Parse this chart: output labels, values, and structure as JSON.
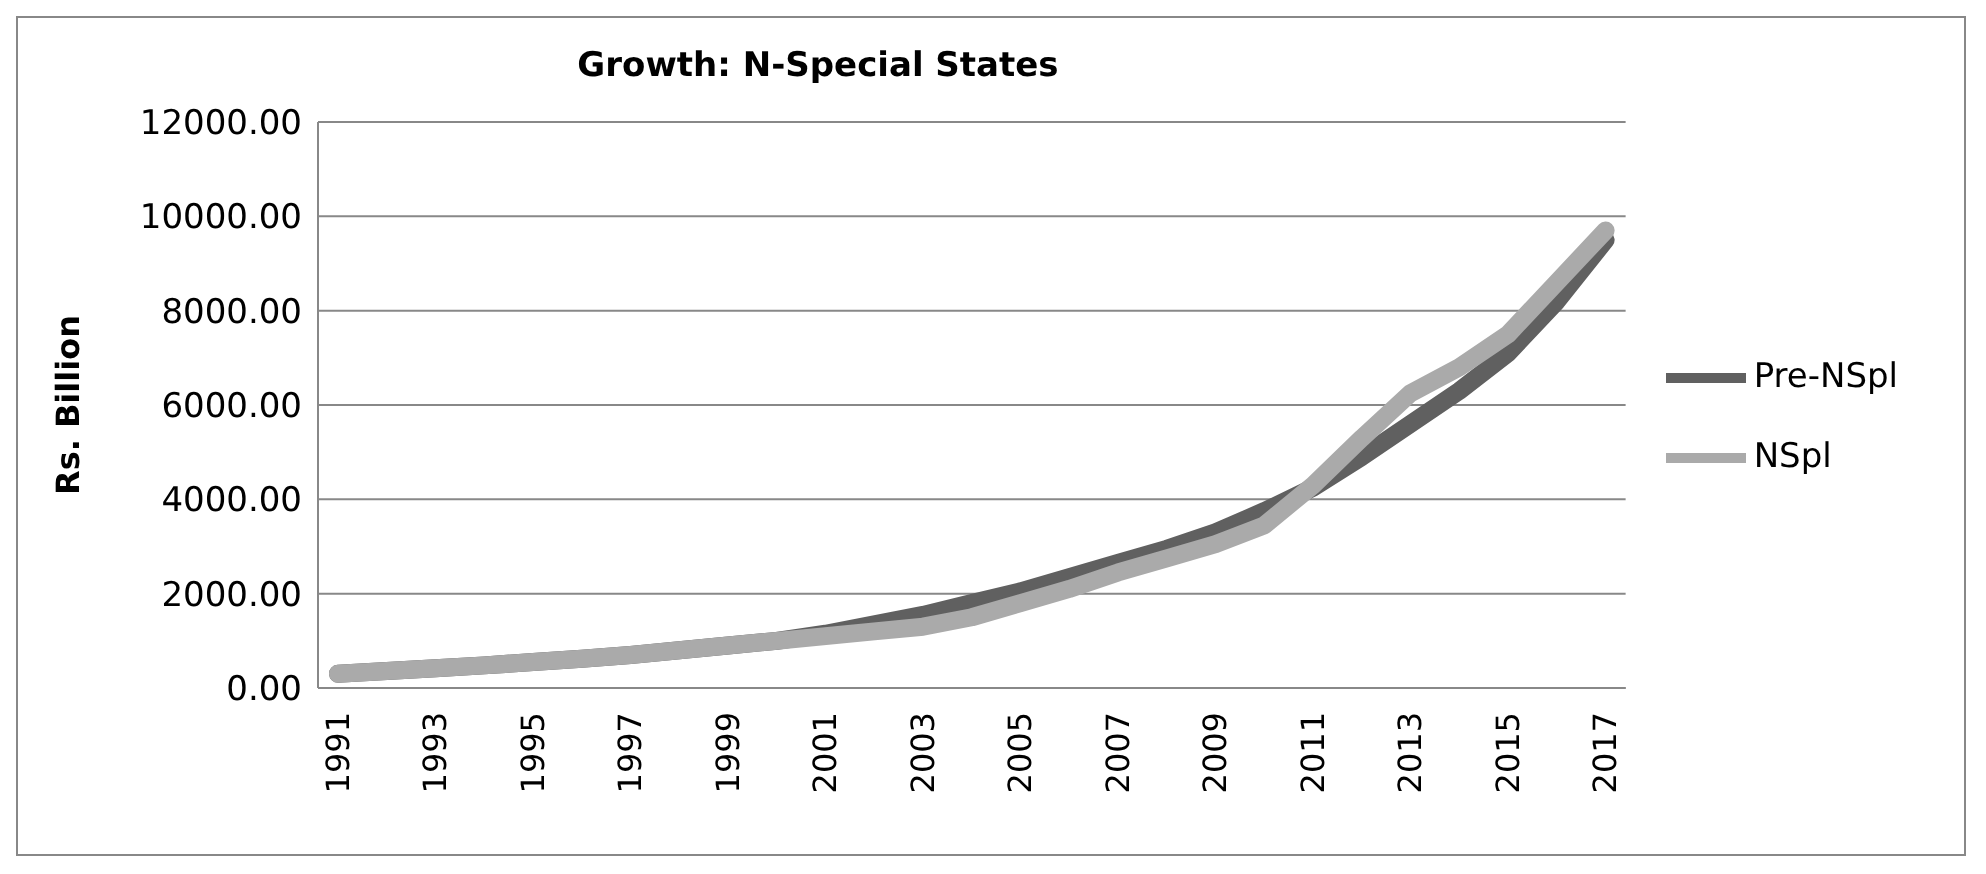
{
  "chart_data": {
    "type": "line",
    "title": "Growth: N-Special States",
    "ylabel": "Rs. Billion",
    "categories": [
      "1991",
      null,
      "1993",
      null,
      "1995",
      null,
      "1997",
      null,
      "1999",
      null,
      "2001",
      null,
      "2003",
      null,
      "2005",
      null,
      "2007",
      null,
      "2009",
      null,
      "2011",
      null,
      "2013",
      null,
      "2015",
      null,
      "2017"
    ],
    "series": [
      {
        "name": "Pre-NSpl",
        "color": "#606060",
        "values": [
          300,
          360,
          420,
          480,
          550,
          620,
          700,
          800,
          900,
          1000,
          1150,
          1350,
          1550,
          1800,
          2050,
          2350,
          2650,
          2950,
          3300,
          3750,
          4250,
          4900,
          5600,
          6300,
          7100,
          8200,
          9500
        ]
      },
      {
        "name": "NSpl",
        "color": "#aaaaaa",
        "values": [
          300,
          360,
          420,
          480,
          550,
          620,
          700,
          800,
          900,
          1000,
          1100,
          1200,
          1300,
          1500,
          1800,
          2100,
          2450,
          2750,
          3050,
          3450,
          4300,
          5300,
          6250,
          6800,
          7500,
          8600,
          9700
        ]
      }
    ],
    "ylim": [
      0,
      12000
    ],
    "yticks": [
      {
        "value": 0,
        "label": "0.00"
      },
      {
        "value": 2000,
        "label": "2000.00"
      },
      {
        "value": 4000,
        "label": "4000.00"
      },
      {
        "value": 6000,
        "label": "6000.00"
      },
      {
        "value": 8000,
        "label": "8000.00"
      },
      {
        "value": 10000,
        "label": "10000.00"
      },
      {
        "value": 12000,
        "label": "12000.00"
      }
    ],
    "grid": "y",
    "legend": "right",
    "marker": "none",
    "line_style": "solid"
  }
}
